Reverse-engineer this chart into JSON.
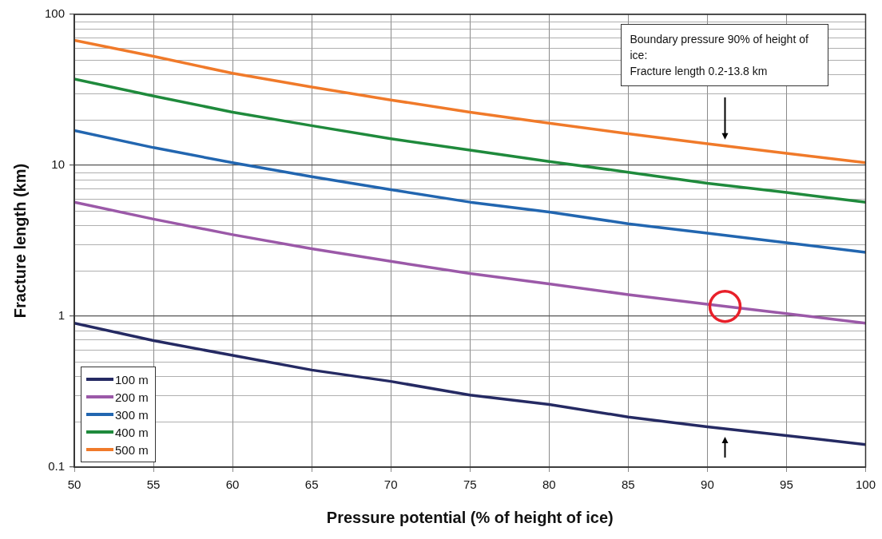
{
  "chart_data": {
    "type": "line",
    "xlabel": "Pressure potential (% of height of ice)",
    "ylabel": "Fracture length (km)",
    "x": [
      50,
      55,
      60,
      65,
      70,
      75,
      80,
      85,
      90,
      95,
      100
    ],
    "series": [
      {
        "name": "100 m",
        "color": "#252a63",
        "values": [
          0.9,
          0.69,
          0.55,
          0.44,
          0.37,
          0.3,
          0.26,
          0.215,
          0.185,
          0.162,
          0.141
        ]
      },
      {
        "name": "200 m",
        "color": "#9b59a8",
        "values": [
          5.7,
          4.4,
          3.47,
          2.8,
          2.31,
          1.92,
          1.64,
          1.39,
          1.2,
          1.04,
          0.9
        ]
      },
      {
        "name": "300 m",
        "color": "#2266b0",
        "values": [
          17,
          13.1,
          10.4,
          8.4,
          6.9,
          5.7,
          4.9,
          4.1,
          3.55,
          3.07,
          2.65
        ]
      },
      {
        "name": "400 m",
        "color": "#1f8a3c",
        "values": [
          37.3,
          28.8,
          22.5,
          18.3,
          15,
          12.6,
          10.6,
          9,
          7.6,
          6.6,
          5.7
        ]
      },
      {
        "name": "500 m",
        "color": "#f07a2a",
        "values": [
          67.4,
          52.7,
          40.7,
          33,
          27.1,
          22.5,
          19,
          16.2,
          13.9,
          12,
          10.4
        ]
      }
    ],
    "xlim": [
      50,
      100
    ],
    "xticks": [
      50,
      55,
      60,
      65,
      70,
      75,
      80,
      85,
      90,
      95,
      100
    ],
    "ylim": [
      0.1,
      100
    ],
    "yticks": [
      0.1,
      1,
      10,
      100
    ],
    "log": "y",
    "grid": true,
    "legend": "bottom left",
    "marker": "none",
    "line_style": "solid",
    "annotations": [
      "Boundary pressure 90% of height of ice:\nFracture length 0.2-13.8 km"
    ]
  }
}
